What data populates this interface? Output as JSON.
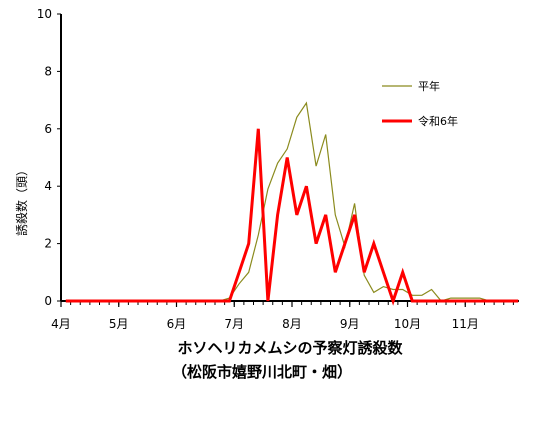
{
  "chart_data": {
    "type": "line",
    "title": "ホソヘリカメムシの予察灯誘殺数",
    "subtitle": "（松阪市嬉野川北町・畑）",
    "ylabel": "誘殺数（頭）",
    "xlabel": "",
    "ylim": [
      0,
      10
    ],
    "yticks": [
      "0",
      "2",
      "4",
      "6",
      "8",
      "10"
    ],
    "month_ticks": [
      "4月",
      "5月",
      "6月",
      "7月",
      "8月",
      "9月",
      "10月",
      "11月"
    ],
    "grid": false,
    "legend_position": "right",
    "x_unit": "half-month periods (6 per month, starting 4月上旬)",
    "series": [
      {
        "name": "平年",
        "color": "#8b8b1e",
        "values": [
          0,
          0,
          0,
          0,
          0,
          0,
          0,
          0,
          0,
          0,
          0,
          0,
          0,
          0,
          0,
          0,
          0,
          0.1,
          0.6,
          1.0,
          2.3,
          3.9,
          4.8,
          5.3,
          6.4,
          6.9,
          4.7,
          5.8,
          3.0,
          1.9,
          3.4,
          0.9,
          0.3,
          0.5,
          0.4,
          0.4,
          0.2,
          0.2,
          0.4,
          0,
          0.1,
          0.1,
          0.1,
          0.1,
          0,
          0,
          0,
          0
        ]
      },
      {
        "name": "令和6年",
        "color": "#ff0000",
        "values": [
          0,
          0,
          0,
          0,
          0,
          0,
          0,
          0,
          0,
          0,
          0,
          0,
          0,
          0,
          0,
          0,
          0,
          0,
          1,
          2,
          6,
          0,
          3,
          5,
          3,
          4,
          2,
          3,
          1,
          2,
          3,
          1,
          2,
          1,
          0,
          1,
          0,
          0,
          0,
          0,
          0,
          0,
          0,
          0,
          0,
          0,
          0,
          0
        ]
      }
    ]
  }
}
